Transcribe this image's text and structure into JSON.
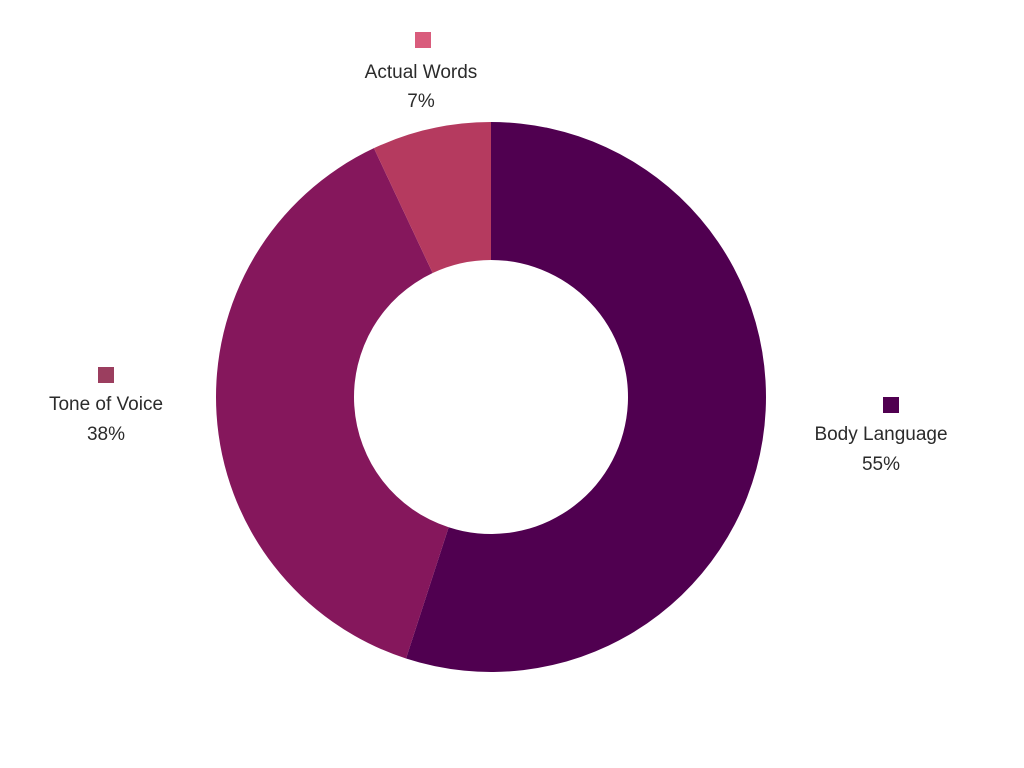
{
  "chart_data": {
    "type": "pie",
    "variant": "donut",
    "title": "",
    "legend": "none",
    "slices": [
      {
        "label": "Body Language",
        "value": 55,
        "display": "55%",
        "color": "#500050",
        "marker_color": "#500050"
      },
      {
        "label": "Tone of Voice",
        "value": 38,
        "display": "38%",
        "color": "#85175c",
        "marker_color": "#9b3e5f"
      },
      {
        "label": "Actual Words",
        "value": 7,
        "display": "7%",
        "color": "#b53a5f",
        "marker_color": "#d95c7c"
      }
    ]
  }
}
